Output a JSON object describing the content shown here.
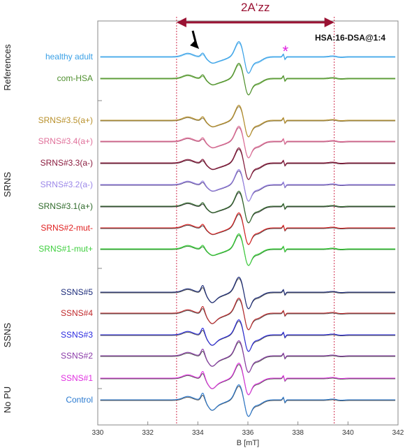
{
  "chart_data": {
    "type": "line",
    "xlabel": "B [mT]",
    "xlim": [
      330,
      342
    ],
    "xticks": [
      330,
      332,
      334,
      336,
      338,
      340,
      342
    ],
    "inner_title": "HSA:16-DSA@1:4",
    "annotation_2a": "2A‘zz",
    "asterisk": "*",
    "markers_x": [
      333.15,
      339.45
    ],
    "arrow_target_x": 334.05,
    "groups": [
      {
        "name": "References",
        "from": 0,
        "to": 1
      },
      {
        "name": "SRNS",
        "from": 2,
        "to": 8
      },
      {
        "name": "SSNS",
        "from": 9,
        "to": 13
      },
      {
        "name": "No PU",
        "from": 14,
        "to": 14
      }
    ],
    "series": [
      {
        "name": "healthy adult",
        "color": "#3aa0e6",
        "color2": "#6bbef0",
        "mode": 0
      },
      {
        "name": "com-HSA",
        "color": "#4f8f2e",
        "color2": "#6fae45",
        "mode": 0
      },
      {
        "name": "SRNS#3.5(a+)",
        "color": "#b8902a",
        "color2": "#8a7a4a",
        "mode": 0
      },
      {
        "name": "SRNS#3.4(a+)",
        "color": "#e0709a",
        "color2": "#b45a7a",
        "mode": 0
      },
      {
        "name": "SRNS#3.3(a-)",
        "color": "#8a1b3e",
        "color2": "#5a2030",
        "mode": 0
      },
      {
        "name": "SRNS#3.2(a-)",
        "color": "#9a86e8",
        "color2": "#5a4a8a",
        "mode": 0
      },
      {
        "name": "SRNS#3.1(a+)",
        "color": "#2f6a2a",
        "color2": "#3a3a3a",
        "mode": 0
      },
      {
        "name": "SRNS#2-mut-",
        "color": "#e02020",
        "color2": "#4a4a4a",
        "mode": 0
      },
      {
        "name": "SRNS#1-mut+",
        "color": "#3ecf3e",
        "color2": "#2a8a2a",
        "mode": 0
      },
      {
        "name": "SSNS#5",
        "color": "#1a2a7a",
        "color2": "#555555",
        "mode": 1
      },
      {
        "name": "SSNS#4",
        "color": "#c0282a",
        "color2": "#555555",
        "mode": 1
      },
      {
        "name": "SSNS#3",
        "color": "#2a2ae0",
        "color2": "#555555",
        "mode": 1
      },
      {
        "name": "SSNS#2",
        "color": "#8a3aa8",
        "color2": "#555555",
        "mode": 1
      },
      {
        "name": "SSNS#1",
        "color": "#e030e0",
        "color2": "#555555",
        "mode": 1
      },
      {
        "name": "Control",
        "color": "#2a7ad0",
        "color2": "#555555",
        "mode": 1
      }
    ]
  }
}
